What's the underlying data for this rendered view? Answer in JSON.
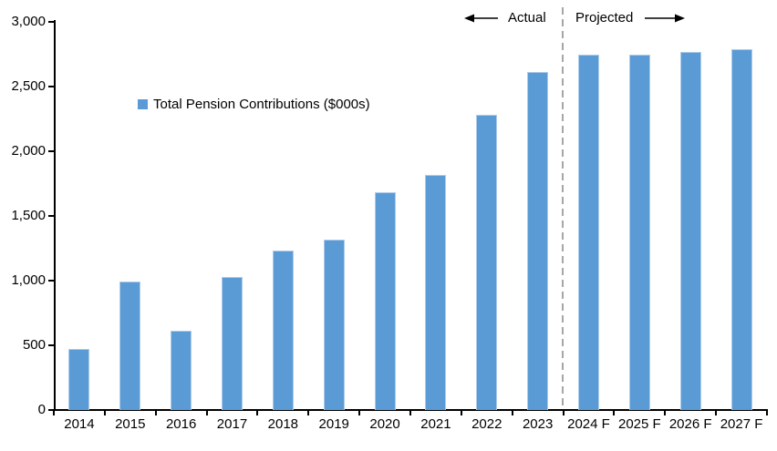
{
  "chart_data": {
    "type": "bar",
    "title": "",
    "xlabel": "",
    "ylabel": "",
    "grid": "off",
    "legend": {
      "label": "Total Pension Contributions ($000s)",
      "position": "inside-upper-left",
      "marker_color": "#5B9BD5"
    },
    "categories": [
      "2014",
      "2015",
      "2016",
      "2017",
      "2018",
      "2019",
      "2020",
      "2021",
      "2022",
      "2023",
      "2024 F",
      "2025 F",
      "2026 F",
      "2027 F"
    ],
    "values": [
      470,
      995,
      610,
      1025,
      1235,
      1320,
      1680,
      1815,
      2280,
      2610,
      2750,
      2745,
      2765,
      2790
    ],
    "ylim": [
      0,
      3000
    ],
    "ytick_interval": 500,
    "ytick_labels": [
      "0",
      "500",
      "1,000",
      "1,500",
      "2,000",
      "2,500",
      "3,000"
    ],
    "bar_color": "#5B9BD5",
    "bar_border_color": "#AECBEA",
    "axis_color": "#000000",
    "divider": {
      "after_category": "2023",
      "style": "dashed",
      "color": "#A6A6A6"
    },
    "annotations": {
      "actual_label": "Actual",
      "projected_label": "Projected"
    }
  }
}
